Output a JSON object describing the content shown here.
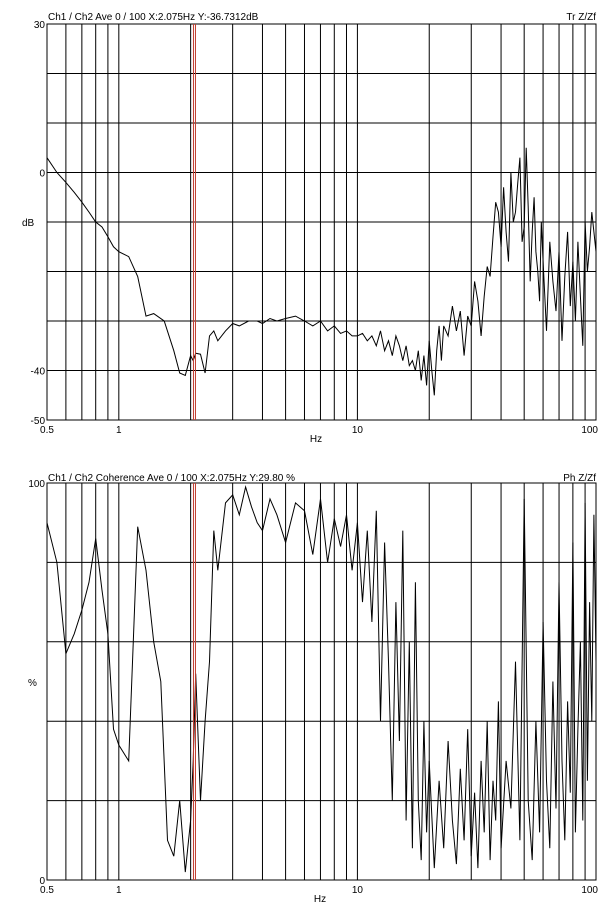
{
  "chart_data": [
    {
      "type": "line",
      "header": "Ch1 / Ch2  Ave 0 / 100  X:2.075Hz  Y:-36.7312dB",
      "right_label": "Tr Z/Zf",
      "xlabel": "Hz",
      "ylabel": "dB",
      "xscale": "log",
      "xlim": [
        0.5,
        100
      ],
      "ylim": [
        -50,
        30
      ],
      "x_tick_labels": [
        {
          "value": 0.5,
          "label": "0.5"
        },
        {
          "value": 1,
          "label": "1"
        },
        {
          "value": 10,
          "label": "10"
        },
        {
          "value": 100,
          "label": "100"
        }
      ],
      "y_tick_labels": [
        {
          "value": 30,
          "label": "30"
        },
        {
          "value": 0,
          "label": "0"
        },
        {
          "value": -40,
          "label": "-40"
        },
        {
          "value": -50,
          "label": "-50"
        }
      ],
      "cursor_x": 2.075,
      "cursor_color": "#c0392b",
      "grid": true,
      "series": [
        {
          "x": [
            0.5,
            0.55,
            0.6,
            0.65,
            0.7,
            0.75,
            0.8,
            0.85,
            0.9,
            0.95,
            1.0,
            1.1,
            1.2,
            1.3,
            1.4,
            1.55,
            1.7,
            1.8,
            1.9,
            2.0,
            2.05,
            2.1,
            2.2,
            2.3,
            2.4,
            2.5,
            2.6,
            2.8,
            3.0,
            3.2,
            3.5,
            3.8,
            4.0,
            4.3,
            4.6,
            5.0,
            5.5,
            6.0,
            6.5,
            7.0,
            7.5,
            8.0,
            8.5,
            9.0,
            9.5,
            10.0,
            10.5,
            11.0,
            11.5,
            12.0,
            12.5,
            13.0,
            13.5,
            14.0,
            14.5,
            15.0,
            15.5,
            16.0,
            16.5,
            17.0,
            17.5,
            18.0,
            18.5,
            19.0,
            19.5,
            20.0,
            20.5,
            21.0,
            21.5,
            22.0,
            22.5,
            23.0,
            24.0,
            25.0,
            26.0,
            27.0,
            28.0,
            29.0,
            30.0,
            31.0,
            32.0,
            33.0,
            34.0,
            35.0,
            36.0,
            37.0,
            38.0,
            39.0,
            40.0,
            41.0,
            42.0,
            43.0,
            44.0,
            45.0,
            46.0,
            47.0,
            48.0,
            49.0,
            50.0,
            51.0,
            52.0,
            53.0,
            54.0,
            55.0,
            56.0,
            57.0,
            58.0,
            59.0,
            60.0,
            62.0,
            64.0,
            66.0,
            68.0,
            70.0,
            72.0,
            74.0,
            76.0,
            78.0,
            80.0,
            82.0,
            84.0,
            86.0,
            88.0,
            90.0,
            92.0,
            94.0,
            96.0,
            98.0,
            100.0
          ],
          "y": [
            3,
            0,
            -2,
            -4,
            -6,
            -8,
            -10,
            -11,
            -13,
            -15,
            -16,
            -17,
            -21,
            -29,
            -28.5,
            -30,
            -36,
            -40.5,
            -41,
            -37,
            -38,
            -36.5,
            -36.7,
            -40.5,
            -33,
            -32,
            -34,
            -32,
            -30.5,
            -31,
            -30,
            -30,
            -30.5,
            -29.5,
            -30,
            -29.5,
            -29,
            -30,
            -31,
            -30,
            -32,
            -31,
            -32.5,
            -32,
            -33,
            -33,
            -32.5,
            -34,
            -33,
            -35,
            -32,
            -36,
            -34,
            -37,
            -33,
            -35,
            -38,
            -35,
            -39,
            -38,
            -40,
            -36,
            -42,
            -37,
            -43,
            -34,
            -40,
            -45,
            -36,
            -31,
            -38,
            -31,
            -33,
            -27,
            -32,
            -28,
            -37,
            -29,
            -31,
            -22,
            -26,
            -33,
            -25,
            -19,
            -21,
            -13,
            -6,
            -8,
            -15,
            -3,
            -12,
            -18,
            0,
            -10,
            -8,
            -2,
            3,
            -14,
            -11,
            5,
            -7,
            -22,
            -12,
            -5,
            -16,
            -20,
            -26,
            -10,
            -18,
            -32,
            -14,
            -22,
            -28,
            -16,
            -34,
            -21,
            -12,
            -27,
            -18,
            -30,
            -14,
            -25,
            -35,
            -10,
            -20,
            -15,
            -8,
            -12,
            -16
          ]
        }
      ]
    },
    {
      "type": "line",
      "header": "Ch1 / Ch2  Coherence Ave 0 / 100  X:2.075Hz  Y:29.80 %",
      "right_label": "Ph Z/Zf",
      "xlabel": "Hz",
      "ylabel": "%",
      "xscale": "log",
      "xlim": [
        0.5,
        100
      ],
      "ylim": [
        0,
        100
      ],
      "x_tick_labels": [
        {
          "value": 0.5,
          "label": "0.5"
        },
        {
          "value": 1,
          "label": "1"
        },
        {
          "value": 10,
          "label": "10"
        },
        {
          "value": 100,
          "label": "100"
        }
      ],
      "y_tick_labels": [
        {
          "value": 100,
          "label": "100"
        },
        {
          "value": 0,
          "label": "0"
        }
      ],
      "cursor_x": 2.075,
      "cursor_color": "#c0392b",
      "grid": true,
      "series": [
        {
          "x": [
            0.5,
            0.55,
            0.6,
            0.65,
            0.7,
            0.75,
            0.8,
            0.85,
            0.9,
            0.95,
            1.0,
            1.1,
            1.2,
            1.3,
            1.4,
            1.5,
            1.6,
            1.7,
            1.8,
            1.9,
            2.0,
            2.05,
            2.1,
            2.2,
            2.3,
            2.4,
            2.5,
            2.6,
            2.8,
            3.0,
            3.2,
            3.4,
            3.6,
            3.8,
            4.0,
            4.3,
            4.6,
            5.0,
            5.5,
            6.0,
            6.5,
            7.0,
            7.5,
            8.0,
            8.5,
            9.0,
            9.5,
            10.0,
            10.5,
            11.0,
            11.5,
            12.0,
            12.5,
            13.0,
            13.5,
            14.0,
            14.5,
            15.0,
            15.5,
            16.0,
            16.5,
            17.0,
            17.5,
            18.0,
            18.5,
            19.0,
            19.5,
            20.0,
            21.0,
            22.0,
            23.0,
            24.0,
            25.0,
            26.0,
            27.0,
            28.0,
            29.0,
            30.0,
            31.0,
            32.0,
            33.0,
            34.0,
            35.0,
            36.0,
            37.0,
            38.0,
            39.0,
            40.0,
            42.0,
            44.0,
            46.0,
            48.0,
            50.0,
            52.0,
            54.0,
            56.0,
            58.0,
            60.0,
            62.0,
            64.0,
            66.0,
            68.0,
            70.0,
            72.0,
            74.0,
            76.0,
            78.0,
            80.0,
            82.0,
            84.0,
            86.0,
            88.0,
            90.0,
            92.0,
            94.0,
            96.0,
            98.0,
            100.0
          ],
          "y": [
            90,
            80,
            57,
            62,
            68,
            75,
            86,
            73,
            62,
            38,
            34,
            30,
            89,
            78,
            60,
            50,
            10,
            6,
            20,
            2,
            15,
            30,
            52,
            20,
            40,
            55,
            88,
            78,
            95,
            97,
            92,
            99,
            94,
            90,
            88,
            96,
            92,
            85,
            95,
            93,
            82,
            96,
            80,
            91,
            84,
            92,
            78,
            90,
            70,
            88,
            65,
            93,
            40,
            85,
            55,
            20,
            70,
            35,
            88,
            15,
            60,
            8,
            75,
            20,
            5,
            40,
            12,
            30,
            3,
            25,
            8,
            35,
            15,
            4,
            28,
            10,
            38,
            6,
            22,
            3,
            30,
            12,
            40,
            5,
            25,
            15,
            45,
            8,
            30,
            18,
            55,
            10,
            96,
            20,
            5,
            40,
            12,
            65,
            25,
            8,
            50,
            18,
            75,
            30,
            10,
            45,
            22,
            85,
            12,
            38,
            60,
            15,
            95,
            25,
            70,
            40,
            92,
            55
          ]
        }
      ]
    }
  ]
}
